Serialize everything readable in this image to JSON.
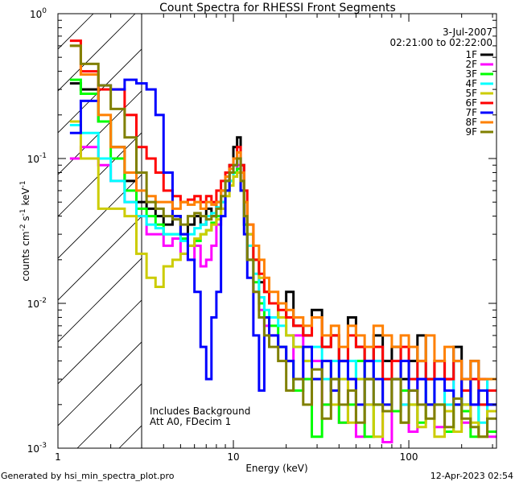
{
  "chart_data": {
    "type": "line",
    "title": "Count Spectra for RHESSI Front Segments",
    "xlabel": "Energy (keV)",
    "ylabel_parts": [
      "counts cm",
      "-2",
      " s",
      "-1",
      " keV",
      "-1"
    ],
    "xscale": "log",
    "yscale": "log",
    "xlim": [
      1,
      316
    ],
    "ylim": [
      0.001,
      1
    ],
    "x_ticks": [
      {
        "value": 1,
        "label": "1"
      },
      {
        "value": 10,
        "label": "10"
      },
      {
        "value": 100,
        "label": "100"
      }
    ],
    "y_ticks": [
      {
        "value": 1,
        "base": "10",
        "exp": "0"
      },
      {
        "value": 0.1,
        "base": "10",
        "exp": "-1"
      },
      {
        "value": 0.01,
        "base": "10",
        "exp": "-2"
      },
      {
        "value": 0.001,
        "base": "10",
        "exp": "-3"
      }
    ],
    "shaded_region": [
      1,
      3
    ],
    "date": "3-Jul-2007",
    "time_range": "02:21:00 to 02:22:00",
    "annotations": [
      "Includes Background",
      "Att A0, FDecim 1"
    ],
    "legend_position": "top-right",
    "bin_edges": [
      1.17,
      1.35,
      1.7,
      2.0,
      2.4,
      2.8,
      3.2,
      3.6,
      4.0,
      4.5,
      5.0,
      5.5,
      6.0,
      6.5,
      7.0,
      7.5,
      8.0,
      8.5,
      9.0,
      9.5,
      10.0,
      10.5,
      11.0,
      11.5,
      12.0,
      13,
      14,
      15,
      16,
      18,
      20,
      22,
      25,
      28,
      32,
      36,
      40,
      45,
      50,
      56,
      63,
      71,
      80,
      90,
      100,
      112,
      125,
      140,
      160,
      180,
      200,
      225,
      250,
      280,
      316
    ],
    "series": [
      {
        "name": "1F",
        "color": "#000000",
        "values": [
          0.33,
          0.3,
          0.18,
          0.12,
          0.07,
          0.05,
          0.045,
          0.04,
          0.035,
          0.04,
          0.03,
          0.035,
          0.04,
          0.035,
          0.045,
          0.04,
          0.05,
          0.06,
          0.07,
          0.09,
          0.12,
          0.14,
          0.09,
          0.05,
          0.03,
          0.02,
          0.014,
          0.012,
          0.01,
          0.008,
          0.012,
          0.007,
          0.006,
          0.009,
          0.005,
          0.006,
          0.004,
          0.008,
          0.005,
          0.003,
          0.006,
          0.004,
          0.005,
          0.003,
          0.004,
          0.006,
          0.003,
          0.004,
          0.003,
          0.005,
          0.002,
          0.004,
          0.003,
          0.002
        ]
      },
      {
        "name": "2F",
        "color": "#ff00ff",
        "values": [
          0.1,
          0.12,
          0.09,
          0.07,
          0.05,
          0.04,
          0.03,
          0.03,
          0.025,
          0.028,
          0.022,
          0.02,
          0.025,
          0.018,
          0.02,
          0.025,
          0.035,
          0.045,
          0.06,
          0.07,
          0.08,
          0.09,
          0.06,
          0.035,
          0.02,
          0.012,
          0.009,
          0.007,
          0.006,
          0.005,
          0.004,
          0.006,
          0.003,
          0.004,
          0.002,
          0.003,
          0.0015,
          0.003,
          0.0012,
          0.002,
          0.004,
          0.0011,
          0.003,
          0.002,
          0.0013,
          0.003,
          0.002,
          0.0014,
          0.003,
          0.002,
          0.0015,
          0.002,
          0.003,
          0.0012
        ]
      },
      {
        "name": "3F",
        "color": "#00ff00",
        "values": [
          0.35,
          0.28,
          0.18,
          0.1,
          0.06,
          0.045,
          0.04,
          0.035,
          0.03,
          0.03,
          0.028,
          0.025,
          0.027,
          0.03,
          0.032,
          0.036,
          0.04,
          0.05,
          0.06,
          0.07,
          0.08,
          0.085,
          0.06,
          0.035,
          0.02,
          0.014,
          0.01,
          0.008,
          0.007,
          0.005,
          0.004,
          0.0025,
          0.003,
          0.0012,
          0.002,
          0.003,
          0.0015,
          0.002,
          0.004,
          0.0012,
          0.002,
          0.003,
          0.0018,
          0.0025,
          0.002,
          0.0015,
          0.003,
          0.002,
          0.0013,
          0.002,
          0.0018,
          0.0012,
          0.002,
          0.0013
        ]
      },
      {
        "name": "4F",
        "color": "#00ffff",
        "values": [
          0.17,
          0.15,
          0.1,
          0.07,
          0.05,
          0.04,
          0.035,
          0.033,
          0.03,
          0.03,
          0.027,
          0.03,
          0.033,
          0.035,
          0.04,
          0.042,
          0.046,
          0.05,
          0.06,
          0.07,
          0.09,
          0.1,
          0.07,
          0.04,
          0.025,
          0.016,
          0.011,
          0.009,
          0.008,
          0.007,
          0.006,
          0.005,
          0.004,
          0.005,
          0.003,
          0.004,
          0.003,
          0.004,
          0.003,
          0.002,
          0.004,
          0.003,
          0.003,
          0.002,
          0.003,
          0.004,
          0.002,
          0.003,
          0.002,
          0.004,
          0.002,
          0.003,
          0.0015,
          0.003
        ]
      },
      {
        "name": "5F",
        "color": "#cccc00",
        "values": [
          0.18,
          0.1,
          0.045,
          0.045,
          0.04,
          0.022,
          0.015,
          0.013,
          0.018,
          0.02,
          0.022,
          0.025,
          0.028,
          0.03,
          0.032,
          0.035,
          0.038,
          0.045,
          0.055,
          0.065,
          0.075,
          0.08,
          0.07,
          0.05,
          0.03,
          0.02,
          0.015,
          0.012,
          0.01,
          0.008,
          0.006,
          0.005,
          0.004,
          0.003,
          0.004,
          0.002,
          0.003,
          0.0015,
          0.003,
          0.002,
          0.0012,
          0.002,
          0.003,
          0.0015,
          0.002,
          0.0014,
          0.002,
          0.0012,
          0.0018,
          0.0013,
          0.002,
          0.0015,
          0.0012,
          0.0018
        ]
      },
      {
        "name": "6F",
        "color": "#ff0000",
        "values": [
          0.65,
          0.4,
          0.3,
          0.3,
          0.2,
          0.12,
          0.1,
          0.08,
          0.06,
          0.055,
          0.05,
          0.052,
          0.055,
          0.05,
          0.055,
          0.05,
          0.06,
          0.07,
          0.08,
          0.09,
          0.1,
          0.12,
          0.09,
          0.06,
          0.035,
          0.02,
          0.016,
          0.012,
          0.01,
          0.009,
          0.008,
          0.007,
          0.006,
          0.008,
          0.005,
          0.006,
          0.004,
          0.006,
          0.005,
          0.004,
          0.005,
          0.003,
          0.004,
          0.005,
          0.003,
          0.004,
          0.003,
          0.004,
          0.003,
          0.004,
          0.0025,
          0.003,
          0.002,
          0.0025
        ]
      },
      {
        "name": "7F",
        "color": "#0000ff",
        "values": [
          0.15,
          0.25,
          0.32,
          0.3,
          0.35,
          0.33,
          0.3,
          0.2,
          0.08,
          0.04,
          0.03,
          0.02,
          0.012,
          0.005,
          0.003,
          0.008,
          0.012,
          0.04,
          0.06,
          0.08,
          0.09,
          0.1,
          0.06,
          0.03,
          0.015,
          0.006,
          0.0025,
          0.008,
          0.006,
          0.005,
          0.004,
          0.003,
          0.005,
          0.003,
          0.004,
          0.0025,
          0.004,
          0.003,
          0.002,
          0.004,
          0.003,
          0.002,
          0.003,
          0.004,
          0.0025,
          0.003,
          0.002,
          0.003,
          0.0025,
          0.002,
          0.003,
          0.002,
          0.0025,
          0.002
        ]
      },
      {
        "name": "8F",
        "color": "#ff8000",
        "values": [
          0.6,
          0.38,
          0.2,
          0.12,
          0.08,
          0.06,
          0.055,
          0.05,
          0.05,
          0.045,
          0.05,
          0.048,
          0.05,
          0.045,
          0.05,
          0.048,
          0.05,
          0.06,
          0.075,
          0.085,
          0.1,
          0.11,
          0.08,
          0.05,
          0.035,
          0.025,
          0.02,
          0.015,
          0.012,
          0.01,
          0.009,
          0.008,
          0.007,
          0.008,
          0.006,
          0.007,
          0.005,
          0.007,
          0.006,
          0.005,
          0.007,
          0.006,
          0.005,
          0.006,
          0.005,
          0.004,
          0.006,
          0.004,
          0.005,
          0.004,
          0.003,
          0.004,
          0.003,
          0.003
        ]
      },
      {
        "name": "9F",
        "color": "#808000",
        "values": [
          0.6,
          0.45,
          0.32,
          0.22,
          0.14,
          0.08,
          0.05,
          0.045,
          0.04,
          0.038,
          0.035,
          0.04,
          0.042,
          0.04,
          0.038,
          0.04,
          0.045,
          0.055,
          0.07,
          0.08,
          0.09,
          0.1,
          0.07,
          0.04,
          0.02,
          0.012,
          0.008,
          0.006,
          0.005,
          0.004,
          0.0025,
          0.003,
          0.002,
          0.0035,
          0.0016,
          0.003,
          0.002,
          0.0025,
          0.0015,
          0.003,
          0.002,
          0.0018,
          0.003,
          0.0015,
          0.0025,
          0.002,
          0.0016,
          0.002,
          0.0014,
          0.0022,
          0.0016,
          0.0014,
          0.0012,
          0.0016
        ]
      }
    ]
  },
  "footer": {
    "generated_by": "Generated by hsi_min_spectra_plot.pro",
    "timestamp": "12-Apr-2023 02:54"
  }
}
